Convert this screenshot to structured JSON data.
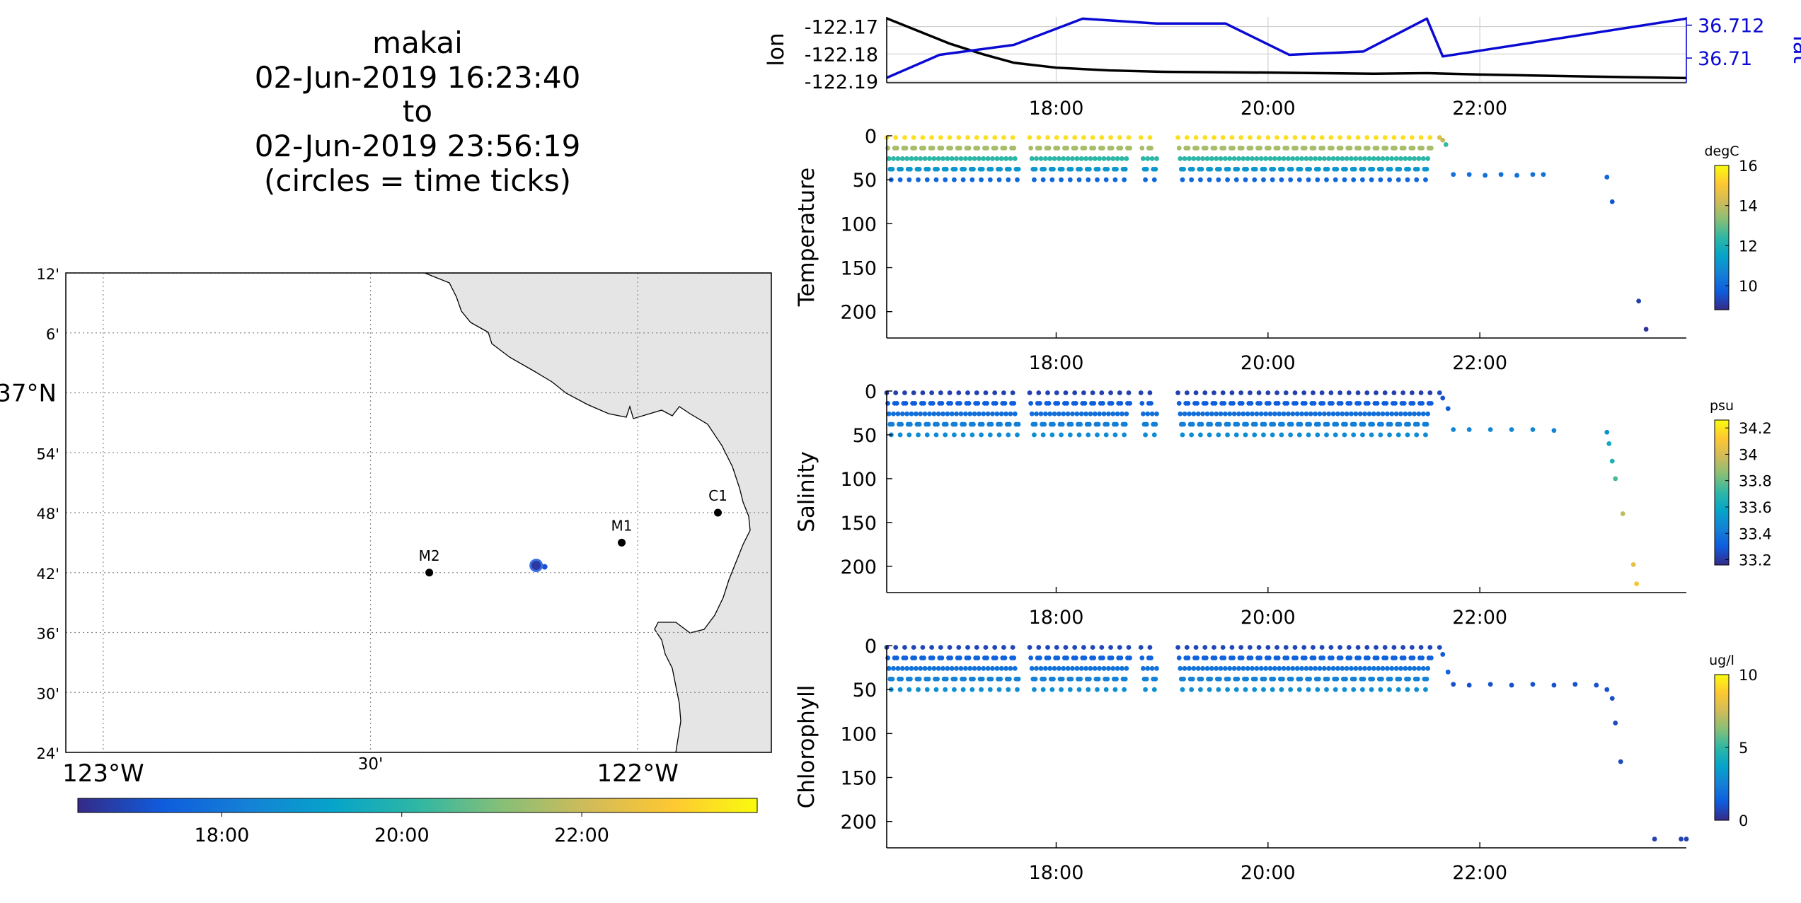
{
  "title": {
    "lines": [
      "makai",
      "02-Jun-2019 16:23:40",
      "to",
      "02-Jun-2019 23:56:19",
      "(circles = time ticks)"
    ]
  },
  "map": {
    "lat_labels": [
      "12'",
      "6'",
      "37°N",
      "54'",
      "48'",
      "42'",
      "36'",
      "30'",
      "24'"
    ],
    "lat_values": [
      37.2,
      37.1,
      37.0,
      36.9,
      36.8,
      36.7,
      36.6,
      36.5,
      36.4
    ],
    "lon_labels": [
      "123°W",
      "30'",
      "122°W"
    ],
    "lon_values": [
      -123.0,
      -122.5,
      -122.0
    ],
    "stations": [
      {
        "name": "M2",
        "lon": -122.39,
        "lat": 36.7
      },
      {
        "name": "M1",
        "lon": -122.03,
        "lat": 36.75
      },
      {
        "name": "C1",
        "lon": -121.85,
        "lat": 36.8
      }
    ],
    "track": {
      "lon": -122.19,
      "lat": 36.712
    },
    "land_color": "#e5e5e5",
    "colorbar_ticks": [
      "18:00",
      "20:00",
      "22:00"
    ]
  },
  "chart_data": [
    {
      "type": "line",
      "title": "",
      "xlabel": "",
      "ylabel": "lon",
      "ylabel_right": "lat",
      "x_ticks": [
        "18:00",
        "20:00",
        "22:00"
      ],
      "x_range_hours": [
        16.4,
        23.95
      ],
      "y_ticks_left": [
        "-122.17",
        "-122.18",
        "-122.19"
      ],
      "y_ticks_right": [
        "36.712",
        "36.71"
      ],
      "ylim_left": [
        -122.1905,
        -122.1665
      ],
      "ylim_right": [
        36.7085,
        36.7125
      ],
      "series": [
        {
          "axis": "left",
          "color": "#000000",
          "x": [
            16.4,
            17.0,
            17.3,
            17.6,
            18.0,
            18.5,
            19.0,
            20.0,
            21.0,
            21.5,
            22.0,
            23.0,
            23.95
          ],
          "y": [
            -122.167,
            -122.1763,
            -122.18,
            -122.1832,
            -122.185,
            -122.186,
            -122.1865,
            -122.1868,
            -122.1872,
            -122.187,
            -122.1875,
            -122.1882,
            -122.1888
          ]
        },
        {
          "axis": "right",
          "color": "#0a0ad2",
          "x": [
            16.4,
            16.9,
            17.6,
            18.25,
            18.95,
            19.6,
            20.2,
            20.9,
            21.5,
            21.65,
            23.95
          ],
          "y": [
            36.7088,
            36.7102,
            36.7108,
            36.7124,
            36.7121,
            36.7121,
            36.7102,
            36.7104,
            36.7124,
            36.7101,
            36.7124
          ]
        }
      ]
    },
    {
      "type": "scatter",
      "ylabel": "Temperature",
      "x_ticks": [
        "18:00",
        "20:00",
        "22:00"
      ],
      "y_ticks": [
        "0",
        "50",
        "100",
        "150",
        "200"
      ],
      "ylim": [
        0,
        230
      ],
      "y_reversed": true,
      "colorbar_unit": "degC",
      "colorbar_ticks": [
        "16",
        "14",
        "12",
        "10"
      ],
      "colorbar_range": [
        8.8,
        16
      ],
      "yo_segments": [
        [
          16.4,
          17.65
        ],
        [
          17.75,
          18.7
        ],
        [
          18.8,
          18.95
        ],
        [
          19.15,
          21.55
        ]
      ],
      "yo_period_hours": 0.085,
      "yo_depth_range": [
        2,
        50
      ],
      "surface_value": 15.5,
      "bottom_value": 10.0,
      "extra_points": [
        {
          "x": 21.62,
          "y": 2,
          "v": 14.5
        },
        {
          "x": 21.65,
          "y": 5,
          "v": 14
        },
        {
          "x": 21.68,
          "y": 10,
          "v": 12.5
        },
        {
          "x": 21.75,
          "y": 44,
          "v": 10.2
        },
        {
          "x": 21.9,
          "y": 44,
          "v": 10.2
        },
        {
          "x": 22.05,
          "y": 45,
          "v": 10.2
        },
        {
          "x": 22.2,
          "y": 44,
          "v": 10.2
        },
        {
          "x": 22.35,
          "y": 45,
          "v": 10.2
        },
        {
          "x": 22.5,
          "y": 44,
          "v": 10.2
        },
        {
          "x": 22.6,
          "y": 44,
          "v": 10.2
        },
        {
          "x": 23.2,
          "y": 47,
          "v": 10.0
        },
        {
          "x": 23.25,
          "y": 75,
          "v": 9.6
        },
        {
          "x": 23.5,
          "y": 188,
          "v": 9.2
        },
        {
          "x": 23.57,
          "y": 220,
          "v": 9.0
        }
      ]
    },
    {
      "type": "scatter",
      "ylabel": "Salinity",
      "x_ticks": [
        "18:00",
        "20:00",
        "22:00"
      ],
      "y_ticks": [
        "0",
        "50",
        "100",
        "150",
        "200"
      ],
      "ylim": [
        0,
        230
      ],
      "y_reversed": true,
      "colorbar_unit": "psu",
      "colorbar_ticks": [
        "34.2",
        "34",
        "33.8",
        "33.6",
        "33.4",
        "33.2"
      ],
      "colorbar_range": [
        33.16,
        34.26
      ],
      "yo_segments": [
        [
          16.4,
          17.65
        ],
        [
          17.75,
          18.7
        ],
        [
          18.8,
          18.95
        ],
        [
          19.15,
          21.55
        ]
      ],
      "yo_period_hours": 0.085,
      "yo_depth_range": [
        2,
        50
      ],
      "surface_value": 33.22,
      "bottom_value": 33.48,
      "extra_points": [
        {
          "x": 21.62,
          "y": 2,
          "v": 33.25
        },
        {
          "x": 21.65,
          "y": 8,
          "v": 33.27
        },
        {
          "x": 21.7,
          "y": 20,
          "v": 33.3
        },
        {
          "x": 21.75,
          "y": 44,
          "v": 33.45
        },
        {
          "x": 21.9,
          "y": 44,
          "v": 33.45
        },
        {
          "x": 22.1,
          "y": 44,
          "v": 33.45
        },
        {
          "x": 22.3,
          "y": 44,
          "v": 33.45
        },
        {
          "x": 22.5,
          "y": 44,
          "v": 33.45
        },
        {
          "x": 22.7,
          "y": 45,
          "v": 33.45
        },
        {
          "x": 23.2,
          "y": 47,
          "v": 33.5
        },
        {
          "x": 23.22,
          "y": 60,
          "v": 33.6
        },
        {
          "x": 23.25,
          "y": 80,
          "v": 33.65
        },
        {
          "x": 23.28,
          "y": 100,
          "v": 33.75
        },
        {
          "x": 23.35,
          "y": 140,
          "v": 33.95
        },
        {
          "x": 23.45,
          "y": 198,
          "v": 34.05
        },
        {
          "x": 23.48,
          "y": 220,
          "v": 34.1
        }
      ]
    },
    {
      "type": "scatter",
      "ylabel": "Chlorophyll",
      "x_ticks": [
        "18:00",
        "20:00",
        "22:00"
      ],
      "y_ticks": [
        "0",
        "50",
        "100",
        "150",
        "200"
      ],
      "ylim": [
        0,
        230
      ],
      "y_reversed": true,
      "colorbar_unit": "ug/l",
      "colorbar_ticks": [
        "10",
        "5",
        "0"
      ],
      "colorbar_range": [
        0,
        10
      ],
      "yo_segments": [
        [
          16.4,
          17.65
        ],
        [
          17.75,
          18.7
        ],
        [
          18.8,
          18.95
        ],
        [
          19.15,
          21.55
        ]
      ],
      "yo_period_hours": 0.085,
      "yo_depth_range": [
        2,
        50
      ],
      "surface_value": 0.7,
      "bottom_value": 3.0,
      "extra_points": [
        {
          "x": 21.62,
          "y": 2,
          "v": 0.8
        },
        {
          "x": 21.65,
          "y": 10,
          "v": 1.2
        },
        {
          "x": 21.7,
          "y": 30,
          "v": 1.5
        },
        {
          "x": 21.75,
          "y": 44,
          "v": 1.0
        },
        {
          "x": 21.9,
          "y": 45,
          "v": 1.0
        },
        {
          "x": 22.1,
          "y": 44,
          "v": 1.0
        },
        {
          "x": 22.3,
          "y": 45,
          "v": 1.0
        },
        {
          "x": 22.5,
          "y": 44,
          "v": 1.0
        },
        {
          "x": 22.7,
          "y": 45,
          "v": 1.0
        },
        {
          "x": 22.9,
          "y": 44,
          "v": 1.0
        },
        {
          "x": 23.1,
          "y": 45,
          "v": 1.0
        },
        {
          "x": 23.2,
          "y": 50,
          "v": 1.0
        },
        {
          "x": 23.25,
          "y": 60,
          "v": 0.9
        },
        {
          "x": 23.28,
          "y": 88,
          "v": 0.8
        },
        {
          "x": 23.33,
          "y": 132,
          "v": 0.8
        },
        {
          "x": 23.65,
          "y": 220,
          "v": 0.6
        },
        {
          "x": 23.9,
          "y": 220,
          "v": 0.6
        },
        {
          "x": 23.95,
          "y": 220,
          "v": 0.6
        }
      ]
    }
  ],
  "colors": {
    "parula": [
      "#352a87",
      "#0f5cdd",
      "#1481d6",
      "#06a4ca",
      "#2eb7a4",
      "#87bf77",
      "#d1bb59",
      "#fec832",
      "#f9fb0e"
    ],
    "grid": "#c8c8c8",
    "lat_axis_blue": "#0a0ad2"
  }
}
